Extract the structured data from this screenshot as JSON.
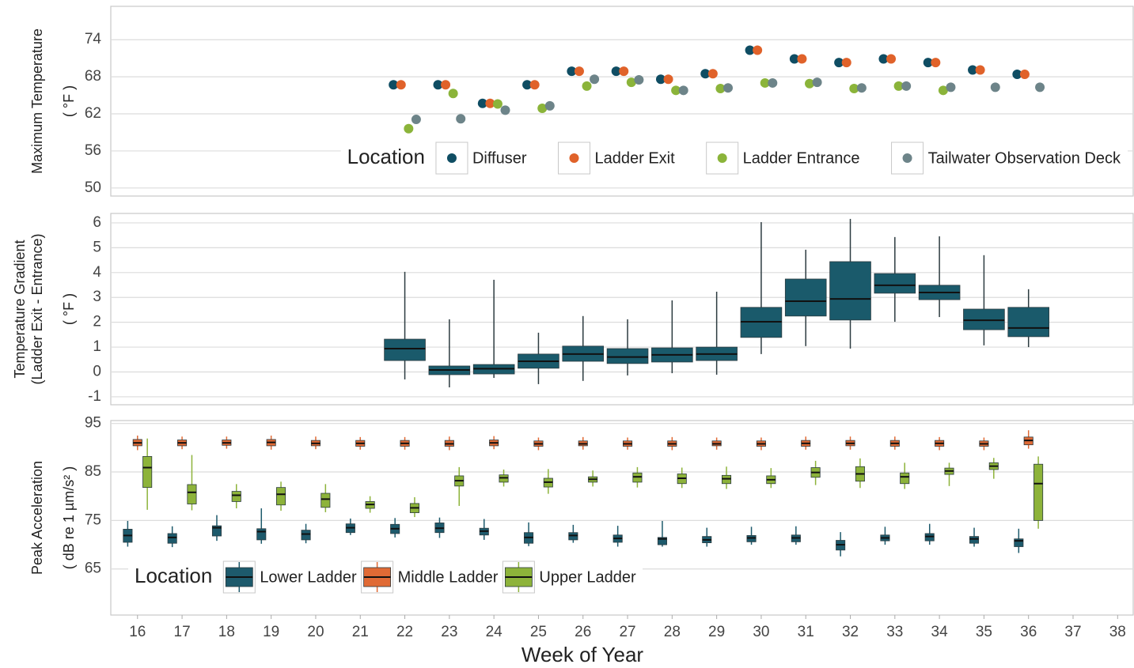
{
  "chart_data": [
    {
      "type": "scatter",
      "y_label": [
        "Maximum Temperature",
        "( °F )"
      ],
      "x": [
        22,
        23,
        24,
        25,
        26,
        27,
        28,
        29,
        30,
        31,
        32,
        33,
        34,
        35,
        36
      ],
      "xlim": [
        15.4,
        38.35
      ],
      "ylim": [
        48.7,
        79.4
      ],
      "yticks": [
        50,
        56,
        62,
        68,
        74
      ],
      "grid": true,
      "legend": {
        "title": "Location",
        "position": "bottom-right"
      },
      "series": [
        {
          "name": "Diffuser",
          "color": "#0f4d63",
          "values": [
            66.7,
            66.7,
            63.7,
            66.7,
            68.9,
            68.9,
            67.6,
            68.5,
            72.3,
            70.9,
            70.3,
            70.9,
            70.3,
            69.1,
            68.4
          ]
        },
        {
          "name": "Ladder Exit",
          "color": "#e0622a",
          "values": [
            66.7,
            66.7,
            63.7,
            66.7,
            68.9,
            68.9,
            67.6,
            68.5,
            72.3,
            70.9,
            70.3,
            70.9,
            70.3,
            69.1,
            68.4
          ]
        },
        {
          "name": "Ladder Entrance",
          "color": "#8bb43a",
          "values": [
            59.6,
            65.3,
            63.6,
            62.9,
            66.5,
            67.1,
            65.8,
            66.1,
            67.0,
            66.9,
            66.1,
            66.5,
            65.8,
            null,
            null
          ]
        },
        {
          "name": "Tailwater Observation Deck",
          "color": "#6d8489",
          "values": [
            61.1,
            61.2,
            62.6,
            63.3,
            67.6,
            67.5,
            65.8,
            66.2,
            67.0,
            67.1,
            66.2,
            66.5,
            66.3,
            66.3,
            66.3
          ]
        }
      ]
    },
    {
      "type": "box",
      "y_label": [
        "Temperature Gradient",
        "(Ladder Exit - Entrance)",
        "( °F )"
      ],
      "x": [
        22,
        23,
        24,
        25,
        26,
        27,
        28,
        29,
        30,
        31,
        32,
        33,
        34,
        35,
        36
      ],
      "xlim": [
        15.4,
        38.35
      ],
      "ylim": [
        -1.32,
        6.38
      ],
      "yticks": [
        -1,
        0,
        1,
        2,
        3,
        4,
        5,
        6
      ],
      "grid": true,
      "series": [
        {
          "color": "#1a5a6b",
          "min": [
            -0.3,
            -0.62,
            -0.24,
            -0.49,
            -0.36,
            -0.14,
            -0.05,
            -0.11,
            0.72,
            1.04,
            0.94,
            2.02,
            2.21,
            1.07,
            1.0
          ],
          "q1": [
            0.46,
            -0.11,
            -0.08,
            0.15,
            0.43,
            0.34,
            0.4,
            0.46,
            1.39,
            2.25,
            2.09,
            3.17,
            2.91,
            1.7,
            1.42
          ],
          "median": [
            0.94,
            0.08,
            0.13,
            0.43,
            0.72,
            0.6,
            0.69,
            0.72,
            2.02,
            2.85,
            2.94,
            3.49,
            3.2,
            2.08,
            1.77
          ],
          "q3": [
            1.32,
            0.24,
            0.3,
            0.72,
            1.04,
            0.94,
            0.97,
            1.0,
            2.6,
            3.74,
            4.44,
            3.96,
            3.49,
            2.53,
            2.6
          ],
          "max": [
            4.03,
            2.12,
            3.71,
            1.58,
            2.25,
            2.12,
            2.88,
            3.23,
            6.03,
            4.92,
            6.16,
            5.43,
            5.46,
            4.7,
            3.33
          ]
        }
      ]
    },
    {
      "type": "box",
      "y_label": [
        "Peak Acceleration",
        "( dB re 1 µm/s² )"
      ],
      "x_label": "Week of Year",
      "x": [
        16,
        17,
        18,
        19,
        20,
        21,
        22,
        23,
        24,
        25,
        26,
        27,
        28,
        29,
        30,
        31,
        32,
        33,
        34,
        35,
        36
      ],
      "xlim": [
        15.4,
        38.35
      ],
      "xticks": [
        16,
        17,
        18,
        19,
        20,
        21,
        22,
        23,
        24,
        25,
        26,
        27,
        28,
        29,
        30,
        31,
        32,
        33,
        34,
        35,
        36,
        37,
        38
      ],
      "ylim": [
        55.5,
        95.6
      ],
      "yticks": [
        65,
        75,
        85,
        95
      ],
      "grid": true,
      "legend": {
        "title": "Location",
        "position": "bottom-left"
      },
      "series": [
        {
          "name": "Lower Ladder",
          "color": "#1d5a6c",
          "min": [
            69.6,
            69.5,
            70.8,
            70.2,
            70.3,
            72.0,
            71.5,
            71.4,
            71.0,
            69.7,
            70.4,
            69.6,
            69.6,
            69.6,
            70.0,
            70.0,
            67.6,
            70.0,
            70.0,
            69.6,
            68.3
          ],
          "q1": [
            70.5,
            70.3,
            71.8,
            71.0,
            71.0,
            72.5,
            72.3,
            72.5,
            72.0,
            70.3,
            71.0,
            70.5,
            70.0,
            70.4,
            70.6,
            70.6,
            68.9,
            70.8,
            70.8,
            70.3,
            69.6
          ],
          "median": [
            71.9,
            71.5,
            73.5,
            72.7,
            72.2,
            73.5,
            73.3,
            73.4,
            72.8,
            71.5,
            71.9,
            71.3,
            71.2,
            71.0,
            71.4,
            71.4,
            70.0,
            71.4,
            71.7,
            71.2,
            70.8
          ],
          "q3": [
            73.2,
            72.3,
            73.9,
            73.3,
            73.0,
            74.3,
            74.2,
            74.5,
            73.4,
            72.5,
            72.5,
            72.0,
            71.5,
            71.7,
            71.9,
            72.0,
            70.9,
            72.0,
            72.3,
            71.7,
            71.2
          ],
          "max": [
            74.9,
            73.8,
            76.1,
            77.5,
            74.3,
            75.4,
            75.5,
            75.6,
            75.3,
            74.6,
            74.1,
            73.9,
            74.9,
            73.5,
            73.7,
            73.8,
            72.6,
            73.7,
            74.3,
            73.5,
            73.3
          ]
        },
        {
          "name": "Middle Ladder",
          "color": "#e06a35",
          "min": [
            89.5,
            89.7,
            89.8,
            89.6,
            89.7,
            89.6,
            89.6,
            89.5,
            89.7,
            89.5,
            89.6,
            89.6,
            89.5,
            89.6,
            89.5,
            89.6,
            89.6,
            89.6,
            89.5,
            89.5,
            89.8
          ],
          "q1": [
            90.4,
            90.4,
            90.5,
            90.4,
            90.4,
            90.3,
            90.3,
            90.3,
            90.4,
            90.3,
            90.4,
            90.3,
            90.3,
            90.4,
            90.3,
            90.3,
            90.4,
            90.3,
            90.3,
            90.3,
            90.6
          ],
          "median": [
            91.0,
            91.0,
            91.0,
            91.1,
            90.9,
            90.9,
            90.9,
            90.8,
            91.0,
            90.8,
            90.8,
            90.8,
            90.8,
            90.8,
            90.8,
            90.9,
            90.9,
            90.9,
            90.9,
            90.8,
            91.5
          ],
          "q3": [
            91.7,
            91.6,
            91.6,
            91.7,
            91.5,
            91.5,
            91.5,
            91.5,
            91.6,
            91.4,
            91.4,
            91.4,
            91.4,
            91.4,
            91.4,
            91.5,
            91.5,
            91.5,
            91.5,
            91.4,
            92.2
          ],
          "max": [
            92.5,
            92.3,
            92.3,
            92.5,
            92.3,
            92.2,
            92.2,
            92.3,
            92.4,
            92.1,
            92.2,
            92.1,
            92.2,
            92.1,
            92.1,
            92.3,
            92.3,
            92.3,
            92.2,
            92.1,
            93.6
          ]
        },
        {
          "name": "Upper Ladder",
          "color": "#8db33a",
          "min": [
            77.2,
            77.1,
            77.5,
            77.0,
            76.7,
            76.6,
            75.7,
            78.0,
            82.0,
            80.5,
            82.0,
            81.8,
            81.7,
            81.5,
            81.7,
            82.3,
            81.7,
            81.5,
            82.1,
            83.6,
            73.3
          ],
          "q1": [
            81.8,
            78.4,
            78.9,
            78.2,
            77.7,
            77.5,
            76.6,
            82.1,
            82.9,
            81.9,
            82.9,
            82.9,
            82.6,
            82.6,
            82.6,
            83.9,
            83.1,
            82.6,
            84.5,
            85.5,
            75.0
          ],
          "median": [
            85.9,
            80.8,
            80.2,
            80.4,
            79.4,
            78.3,
            77.6,
            83.2,
            83.8,
            82.9,
            83.5,
            84.0,
            83.7,
            83.6,
            83.4,
            84.9,
            84.6,
            84.0,
            85.2,
            86.2,
            82.6
          ],
          "q3": [
            88.2,
            82.4,
            81.0,
            81.8,
            80.6,
            78.9,
            78.5,
            84.2,
            84.4,
            83.7,
            84.0,
            84.8,
            84.6,
            84.3,
            84.2,
            85.9,
            86.1,
            84.8,
            85.8,
            86.9,
            86.6
          ],
          "max": [
            91.9,
            88.5,
            82.5,
            83.0,
            82.5,
            80.0,
            79.8,
            86.0,
            85.5,
            85.6,
            85.3,
            86.0,
            85.9,
            86.1,
            85.8,
            87.3,
            87.8,
            86.9,
            86.9,
            87.9,
            88.2
          ]
        }
      ]
    }
  ]
}
